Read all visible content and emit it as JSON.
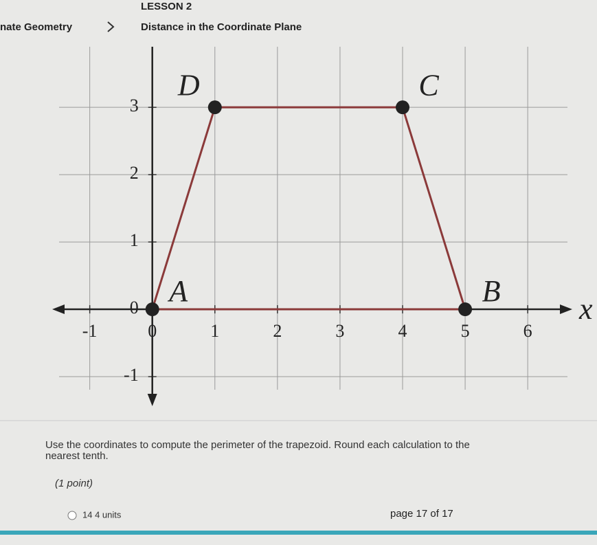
{
  "header": {
    "breadcrumb": "nate Geometry",
    "lesson": "LESSON 2",
    "title": "Distance in the Coordinate Plane"
  },
  "chart_data": {
    "type": "polygon",
    "points": [
      {
        "label": "A",
        "x": 0,
        "y": 0
      },
      {
        "label": "B",
        "x": 5,
        "y": 0
      },
      {
        "label": "C",
        "x": 4,
        "y": 3
      },
      {
        "label": "D",
        "x": 1,
        "y": 3
      }
    ],
    "x_label": "x",
    "xlim": [
      -1.6,
      6.8
    ],
    "ylim": [
      -1.5,
      3.9
    ],
    "xticks": [
      -1,
      0,
      1,
      2,
      3,
      4,
      5,
      6
    ],
    "yticks": [
      -1,
      0,
      1,
      2,
      3
    ],
    "grid": true,
    "color": "#8b3a3a"
  },
  "question": {
    "text_line1": "Use the coordinates to compute the perimeter of the trapezoid. Round each calculation to the",
    "text_line2": "nearest tenth.",
    "points": "(1 point)",
    "option": "14 4 units",
    "page": "page 17 of 17"
  }
}
